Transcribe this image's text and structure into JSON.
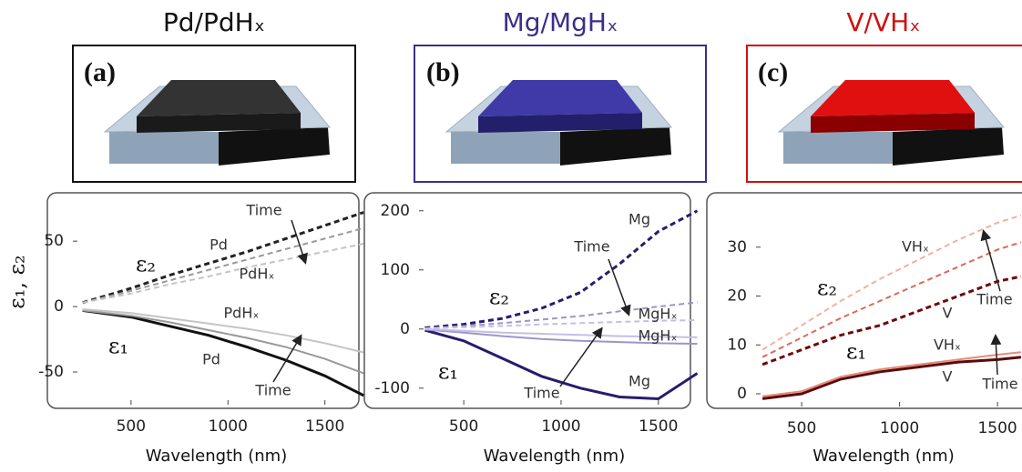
{
  "chart_data": [
    {
      "type": "line",
      "title": "Pd/PdHₓ",
      "title_color": "#111111",
      "panel_label": "(a)",
      "xlabel": "Wavelength (nm)",
      "ylabel": "ε₁, ε₂",
      "xlim": [
        200,
        1680
      ],
      "ylim": [
        -75,
        80
      ],
      "xticks": [
        500,
        1000,
        1500
      ],
      "yticks": [
        -50,
        0,
        50
      ],
      "x": [
        250,
        500,
        700,
        900,
        1100,
        1300,
        1500,
        1700
      ],
      "series": [
        {
          "color": "#222222",
          "dashed": true,
          "values": [
            3,
            14,
            24,
            33,
            42,
            52,
            62,
            72
          ]
        },
        {
          "color": "#999999",
          "dashed": true,
          "values": [
            3,
            12,
            20,
            28,
            36,
            44,
            52,
            60
          ]
        },
        {
          "color": "#c4c4c4",
          "dashed": true,
          "values": [
            3,
            10,
            17,
            23,
            30,
            36,
            42,
            48
          ]
        },
        {
          "color": "#111111",
          "dashed": false,
          "values": [
            -3,
            -8,
            -15,
            -22,
            -31,
            -41,
            -53,
            -68
          ]
        },
        {
          "color": "#999999",
          "dashed": false,
          "values": [
            -3,
            -7,
            -12,
            -18,
            -24,
            -31,
            -40,
            -51
          ]
        },
        {
          "color": "#c4c4c4",
          "dashed": false,
          "values": [
            -2,
            -5,
            -9,
            -13,
            -17,
            -22,
            -28,
            -35
          ]
        }
      ],
      "annotations": [
        "Time",
        "Pd",
        "PdHₓ",
        "ε₂",
        "PdHₓ",
        "ε₁",
        "Pd",
        "Time"
      ]
    },
    {
      "type": "line",
      "title": "Mg/MgHₓ",
      "title_color": "#3b2f8a",
      "panel_label": "(b)",
      "xlabel": "Wavelength (nm)",
      "xlim": [
        270,
        1660
      ],
      "ylim": [
        -128,
        215
      ],
      "xticks": [
        500,
        1000,
        1500
      ],
      "yticks": [
        -100,
        0,
        100,
        200
      ],
      "x": [
        300,
        500,
        700,
        900,
        1100,
        1300,
        1500,
        1700
      ],
      "series": [
        {
          "color": "#2a1a6e",
          "dashed": true,
          "values": [
            2,
            8,
            18,
            35,
            62,
            110,
            165,
            200
          ]
        },
        {
          "color": "#9c95cc",
          "dashed": true,
          "values": [
            1,
            5,
            10,
            16,
            22,
            30,
            38,
            45
          ]
        },
        {
          "color": "#c4bfe4",
          "dashed": true,
          "values": [
            1,
            3,
            5,
            8,
            10,
            12,
            14,
            15
          ]
        },
        {
          "color": "#2a1a6e",
          "dashed": false,
          "values": [
            -2,
            -20,
            -50,
            -80,
            -100,
            -115,
            -118,
            -75
          ]
        },
        {
          "color": "#9c95cc",
          "dashed": false,
          "values": [
            -1,
            -6,
            -12,
            -17,
            -20,
            -22,
            -24,
            -25
          ]
        },
        {
          "color": "#c4bfe4",
          "dashed": false,
          "values": [
            0,
            -3,
            -6,
            -8,
            -10,
            -12,
            -13,
            -14
          ]
        }
      ],
      "annotations": [
        "Mg",
        "Time",
        "ε₂",
        "MgHₓ",
        "MgHₓ",
        "ε₁",
        "Time",
        "Mg"
      ]
    },
    {
      "type": "line",
      "title": "V/VHₓ",
      "title_color": "#d01010",
      "panel_label": "(c)",
      "xlabel": "Wavelength (nm)",
      "xlim": [
        267,
        1625
      ],
      "ylim": [
        -2.6,
        38.7
      ],
      "xticks": [
        500,
        1000,
        1500
      ],
      "yticks": [
        0,
        10,
        20,
        30
      ],
      "x": [
        300,
        500,
        700,
        900,
        1100,
        1300,
        1500,
        1620
      ],
      "series": [
        {
          "color": "#6e0a0a",
          "dashed": true,
          "values": [
            6,
            9,
            12,
            14,
            17,
            20,
            23,
            24
          ]
        },
        {
          "color": "#d86a5a",
          "dashed": true,
          "values": [
            7.5,
            11.5,
            15.5,
            19,
            22.5,
            26,
            29.5,
            31
          ]
        },
        {
          "color": "#f2b0a0",
          "dashed": true,
          "values": [
            9,
            14,
            19,
            23.5,
            27.5,
            31.5,
            35,
            36.5
          ]
        },
        {
          "color": "#5a0a0a",
          "dashed": false,
          "values": [
            -1,
            0,
            3,
            4.5,
            5.5,
            6.5,
            7,
            7.5
          ]
        },
        {
          "color": "#e88a78",
          "dashed": false,
          "values": [
            -0.5,
            0.5,
            3.5,
            5,
            6,
            7,
            8,
            8.5
          ]
        }
      ],
      "annotations": [
        "VHₓ",
        "ε₂",
        "Time",
        "V",
        "ε₁",
        "VHₓ",
        "V",
        "Time"
      ]
    }
  ]
}
